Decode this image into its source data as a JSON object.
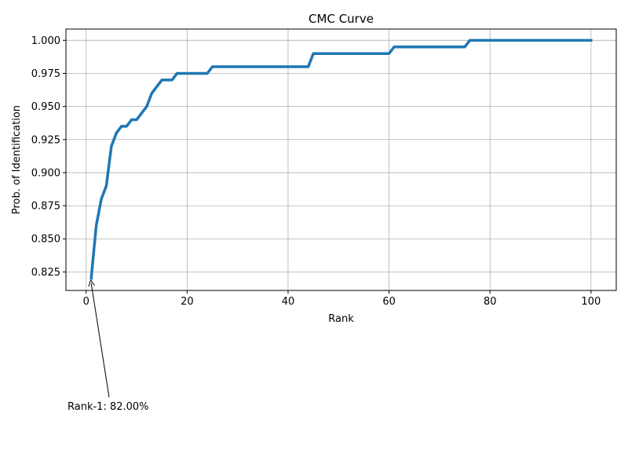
{
  "chart_data": {
    "type": "line",
    "title": "CMC Curve",
    "xlabel": "Rank",
    "ylabel": "Prob. of Identification",
    "xlim": [
      -4,
      105
    ],
    "ylim": [
      0.811,
      1.0085
    ],
    "x_ticks": [
      0,
      20,
      40,
      60,
      80,
      100
    ],
    "x_tick_labels": [
      "0",
      "20",
      "40",
      "60",
      "80",
      "100"
    ],
    "y_ticks": [
      0.825,
      0.85,
      0.875,
      0.9,
      0.925,
      0.95,
      0.975,
      1.0
    ],
    "y_tick_labels": [
      "0.825",
      "0.850",
      "0.875",
      "0.900",
      "0.925",
      "0.950",
      "0.975",
      "1.000"
    ],
    "grid": true,
    "line_color": "#1f77b4",
    "series": [
      {
        "x": [
          1,
          2,
          3,
          4,
          5,
          6,
          7,
          8,
          9,
          10,
          11,
          12,
          13,
          14,
          15,
          16,
          17,
          18,
          24,
          25,
          44,
          45,
          60,
          61,
          75,
          76,
          100
        ],
        "values": [
          0.82,
          0.86,
          0.88,
          0.89,
          0.92,
          0.93,
          0.935,
          0.935,
          0.94,
          0.94,
          0.945,
          0.95,
          0.96,
          0.965,
          0.97,
          0.97,
          0.97,
          0.975,
          0.975,
          0.98,
          0.98,
          0.99,
          0.99,
          0.995,
          0.995,
          1.0,
          1.0
        ]
      }
    ],
    "annotation": {
      "text": "Rank-1: 82.00%",
      "x": 1,
      "y": 0.82
    }
  }
}
